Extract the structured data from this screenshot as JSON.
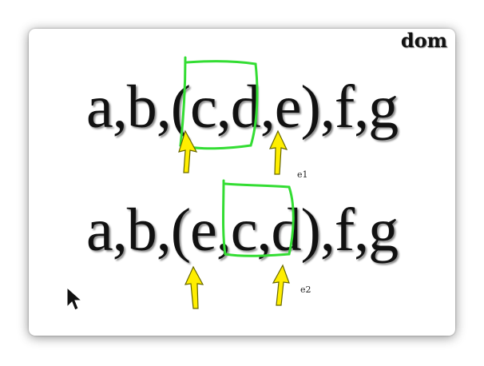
{
  "title": "dom",
  "sequence_before": "a,b,(c,d,e),f,g",
  "sequence_after": "a,b,(e,c,d),f,g",
  "label_row1": "e1",
  "label_row2": "e2",
  "colors": {
    "highlight": "#33dd33",
    "arrow": "#ffee00",
    "arrow_outline": "#666600",
    "text": "#111111"
  },
  "icons": [
    "mouse-cursor-icon",
    "arrow-up-icon"
  ]
}
